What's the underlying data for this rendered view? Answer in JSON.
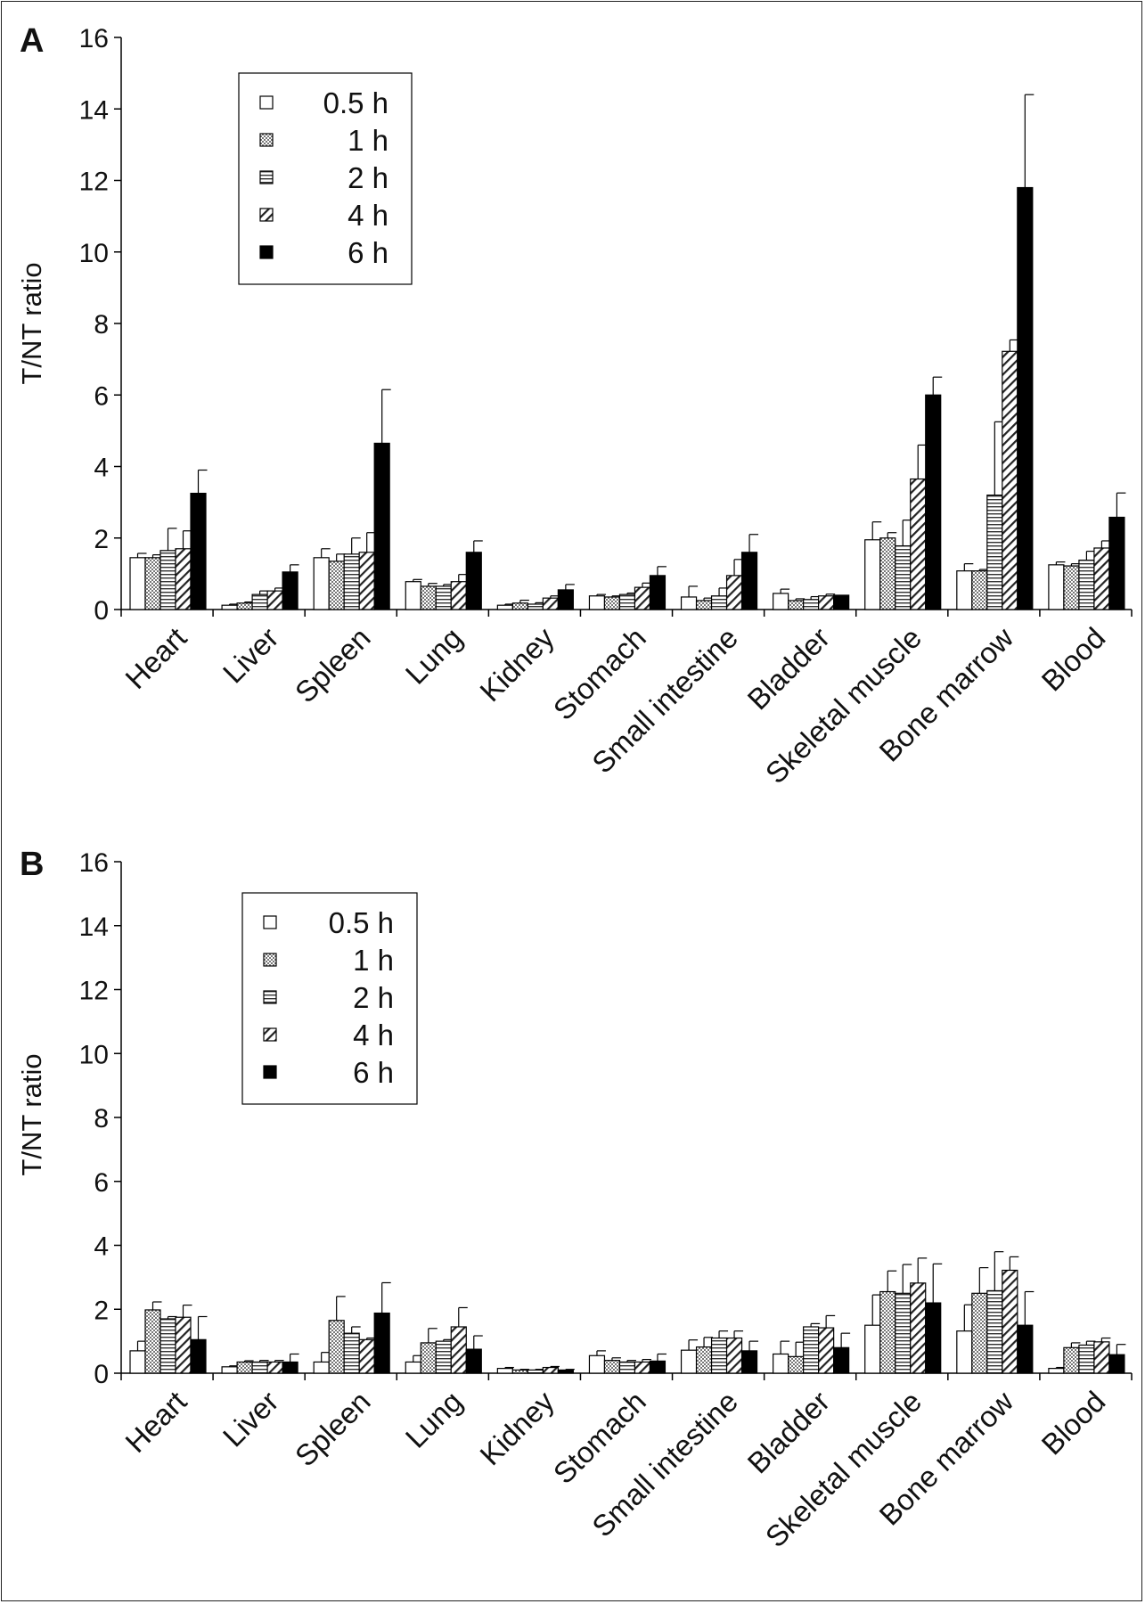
{
  "chart_data": [
    {
      "panel": "A",
      "type": "bar",
      "ylabel": "T/NT ratio",
      "ylim": [
        0,
        16
      ],
      "yticks": [
        0,
        2,
        4,
        6,
        8,
        10,
        12,
        14,
        16
      ],
      "legend_placement": "top-left",
      "categories": [
        "Heart",
        "Liver",
        "Spleen",
        "Lung",
        "Kidney",
        "Stomach",
        "Small intestine",
        "Bladder",
        "Skeletal muscle",
        "Bone marrow",
        "Blood"
      ],
      "series": [
        {
          "name": "0.5 h",
          "fill": "white",
          "values": [
            1.45,
            0.12,
            1.45,
            0.78,
            0.12,
            0.38,
            0.35,
            0.45,
            1.95,
            1.08,
            1.25
          ],
          "errors": [
            0.12,
            0.03,
            0.25,
            0.06,
            0.03,
            0.04,
            0.3,
            0.12,
            0.5,
            0.2,
            0.08
          ]
        },
        {
          "name": "1 h",
          "fill": "dots",
          "values": [
            1.45,
            0.18,
            1.35,
            0.65,
            0.18,
            0.35,
            0.25,
            0.25,
            2.0,
            1.08,
            1.22
          ],
          "errors": [
            0.08,
            0.03,
            0.2,
            0.08,
            0.08,
            0.03,
            0.07,
            0.05,
            0.15,
            0.04,
            0.06
          ]
        },
        {
          "name": "2 h",
          "fill": "hlines",
          "values": [
            1.65,
            0.42,
            1.55,
            0.65,
            0.15,
            0.42,
            0.38,
            0.28,
            1.78,
            3.2,
            1.38
          ],
          "errors": [
            0.62,
            0.1,
            0.45,
            0.05,
            0.04,
            0.04,
            0.22,
            0.08,
            0.72,
            2.05,
            0.25
          ]
        },
        {
          "name": "4 h",
          "fill": "diagonal",
          "values": [
            1.7,
            0.52,
            1.6,
            0.78,
            0.32,
            0.62,
            0.95,
            0.38,
            3.65,
            7.22,
            1.72
          ],
          "errors": [
            0.5,
            0.08,
            0.55,
            0.2,
            0.06,
            0.12,
            0.45,
            0.05,
            0.95,
            0.32,
            0.2
          ]
        },
        {
          "name": "6 h",
          "fill": "black",
          "values": [
            3.25,
            1.05,
            4.65,
            1.6,
            0.55,
            0.95,
            1.6,
            0.4,
            6.0,
            11.8,
            2.58
          ],
          "errors": [
            0.65,
            0.2,
            1.5,
            0.32,
            0.15,
            0.25,
            0.5,
            0.0,
            0.5,
            2.6,
            0.68
          ]
        }
      ]
    },
    {
      "panel": "B",
      "type": "bar",
      "ylabel": "T/NT ratio",
      "ylim": [
        0,
        16
      ],
      "yticks": [
        0,
        2,
        4,
        6,
        8,
        10,
        12,
        14,
        16
      ],
      "legend_placement": "top-left",
      "categories": [
        "Heart",
        "Liver",
        "Spleen",
        "Lung",
        "Kidney",
        "Stomach",
        "Small intestine",
        "Bladder",
        "Skeletal muscle",
        "Bone marrow",
        "Blood"
      ],
      "series": [
        {
          "name": "0.5 h",
          "fill": "white",
          "values": [
            0.7,
            0.2,
            0.35,
            0.35,
            0.15,
            0.55,
            0.72,
            0.6,
            1.5,
            1.32,
            0.15
          ],
          "errors": [
            0.3,
            0.03,
            0.3,
            0.2,
            0.03,
            0.15,
            0.32,
            0.4,
            0.95,
            0.82,
            0.03
          ]
        },
        {
          "name": "1 h",
          "fill": "dots",
          "values": [
            1.98,
            0.35,
            1.65,
            0.95,
            0.1,
            0.4,
            0.82,
            0.52,
            2.55,
            2.5,
            0.8
          ]
        },
        {
          "name": "2 h",
          "fill": "hlines",
          "values": [
            1.7,
            0.35,
            1.25,
            1.0,
            0.1,
            0.35,
            1.1,
            1.45,
            2.5,
            2.58,
            0.88
          ]
        },
        {
          "name": "4 h",
          "fill": "diagonal",
          "values": [
            1.75,
            0.35,
            1.05,
            1.45,
            0.18,
            0.35,
            1.1,
            1.42,
            2.82,
            3.22,
            0.98
          ]
        },
        {
          "name": "6 h",
          "fill": "black",
          "values": [
            1.05,
            0.35,
            1.88,
            0.75,
            0.1,
            0.38,
            0.7,
            0.8,
            2.2,
            1.5,
            0.58
          ]
        }
      ]
    }
  ],
  "errors_b": [
    [
      0.3,
      0.25,
      0.07,
      0.38,
      0.72
    ],
    [
      0.03,
      0.04,
      0.05,
      0.05,
      0.25
    ],
    [
      0.3,
      0.75,
      0.2,
      0.05,
      0.95
    ],
    [
      0.2,
      0.45,
      0.05,
      0.6,
      0.42
    ],
    [
      0.03,
      0.02,
      0.02,
      0.03,
      0.02
    ],
    [
      0.15,
      0.08,
      0.05,
      0.08,
      0.22
    ],
    [
      0.32,
      0.3,
      0.22,
      0.22,
      0.3
    ],
    [
      0.4,
      0.45,
      0.1,
      0.38,
      0.45
    ],
    [
      0.95,
      0.65,
      0.9,
      0.78,
      1.22
    ],
    [
      0.82,
      0.8,
      1.22,
      0.42,
      1.05
    ],
    [
      0.03,
      0.15,
      0.12,
      0.12,
      0.32
    ]
  ]
}
